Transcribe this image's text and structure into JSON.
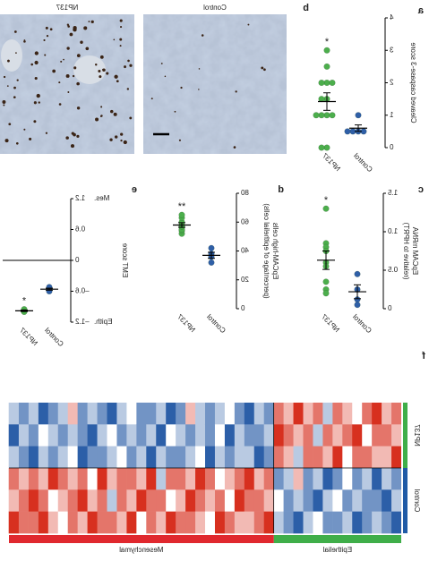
{
  "micrographs": {
    "letter": "b",
    "panels": [
      "Control",
      "NP137"
    ]
  },
  "chart_data": [
    {
      "type": "dot",
      "letter": "a",
      "ylabel": [
        "Cleaved caspase-3 score"
      ],
      "ylim": [
        0,
        4
      ],
      "yticks": [
        0,
        1,
        2,
        3,
        4
      ],
      "series": [
        {
          "name": "Control",
          "color": "#2f5fa7",
          "values": [
            0.5,
            0.5,
            0.5,
            0.5,
            1
          ],
          "mean": 0.6,
          "sem": 0.1
        },
        {
          "name": "NP137",
          "color": "#4cae4c",
          "values": [
            0,
            0,
            1,
            1,
            1,
            1,
            1.5,
            1.5,
            2,
            2,
            2,
            2.5,
            3
          ],
          "mean": 1.42,
          "sem": 0.27,
          "annotation": "*"
        }
      ]
    },
    {
      "type": "dot",
      "letter": "c",
      "ylabel": [
        "EpCAM mRNA",
        "(relative to HPRT)"
      ],
      "ylim": [
        0,
        1.5
      ],
      "yticks": [
        0,
        0.5,
        {
          "value": 1,
          "label": "1.0"
        },
        1.5
      ],
      "series": [
        {
          "name": "Control",
          "color": "#2f5fa7",
          "values": [
            0.45,
            0.25,
            0.12,
            0.05
          ],
          "mean": 0.22,
          "sem": 0.09
        },
        {
          "name": "NP137",
          "color": "#4cae4c",
          "values": [
            1.3,
            0.85,
            0.8,
            0.75,
            0.6,
            0.55,
            0.35,
            0.25,
            0.2
          ],
          "mean": 0.63,
          "sem": 0.12,
          "annotation": "*"
        }
      ]
    },
    {
      "type": "dot",
      "letter": "d",
      "ylabel": [
        "EpCAM-high cells",
        "(percentage of epithelial cells)"
      ],
      "ylim": [
        0,
        80
      ],
      "yticks": [
        0,
        20,
        40,
        60,
        80
      ],
      "series": [
        {
          "name": "Control",
          "color": "#2f5fa7",
          "values": [
            38,
            42,
            36,
            32
          ],
          "mean": 37,
          "sem": 2.1
        },
        {
          "name": "NP137",
          "color": "#4cae4c",
          "values": [
            52,
            54,
            55,
            57,
            58,
            60,
            63,
            65
          ],
          "mean": 58,
          "sem": 1.6,
          "annotation": "**"
        }
      ]
    },
    {
      "type": "dot",
      "letter": "e",
      "ylabel": [
        "EMT score"
      ],
      "end_labels": [
        "Epith.",
        "Mes."
      ],
      "zero_line": true,
      "ylim": [
        -1.2,
        1.2
      ],
      "yticks": [
        {
          "value": -1.2,
          "label": "–1.2"
        },
        {
          "value": -0.6,
          "label": "–0.6"
        },
        0,
        0.6,
        1.2
      ],
      "series": [
        {
          "name": "Control",
          "color": "#2f5fa7",
          "values": [
            -0.55,
            -0.52,
            -0.6
          ],
          "mean": -0.56,
          "sem": 0.02
        },
        {
          "name": "NP137",
          "color": "#4cae4c",
          "values": [
            -0.98,
            -0.95,
            -1.0
          ],
          "mean": -0.98,
          "sem": 0.015,
          "annotation": "*"
        }
      ]
    },
    {
      "type": "heatmap",
      "letter": "f",
      "zlim": [
        -3,
        3
      ],
      "colors": [
        "#2c5fa8",
        "#ffffff",
        "#d7301f"
      ],
      "row_groups": [
        {
          "name": "NP137",
          "color": "#3fae49",
          "size": 3
        },
        {
          "name": "Control",
          "color": "#1f5aa6",
          "size": 3
        }
      ],
      "col_groups": [
        {
          "name": "Epithelial",
          "color": "#3fae49",
          "size": 13
        },
        {
          "name": "Mesenchymal",
          "color": "#e0282e",
          "size": 27
        }
      ],
      "values": [
        [
          2,
          1,
          3,
          2,
          0,
          1,
          2,
          -1,
          2,
          1,
          3,
          1,
          2,
          -2,
          -1,
          -3,
          -2,
          0,
          -1,
          -2,
          -1,
          1,
          -2,
          -3,
          -1,
          -2,
          -2,
          0,
          -1,
          -3,
          -2,
          -1,
          -2,
          1,
          -1,
          -2,
          -3,
          -1,
          -2,
          -1
        ],
        [
          1,
          2,
          2,
          0,
          3,
          2,
          1,
          2,
          -1,
          2,
          1,
          2,
          3,
          -1,
          -2,
          -2,
          -1,
          -3,
          0,
          -2,
          -1,
          -2,
          -1,
          0,
          -3,
          -1,
          -2,
          -1,
          -2,
          0,
          -1,
          -3,
          -2,
          -1,
          -2,
          -1,
          0,
          -2,
          -1,
          -3
        ],
        [
          3,
          1,
          1,
          2,
          2,
          0,
          3,
          1,
          2,
          2,
          -1,
          1,
          2,
          -2,
          -3,
          -1,
          -1,
          -2,
          -1,
          -3,
          0,
          -1,
          -2,
          -2,
          -1,
          -3,
          -1,
          -2,
          0,
          -1,
          -2,
          -2,
          -3,
          0,
          -1,
          -2,
          -1,
          -3,
          -2,
          -1
        ],
        [
          -2,
          -1,
          -3,
          -1,
          -2,
          0,
          -2,
          -3,
          -1,
          -2,
          1,
          -1,
          -2,
          2,
          1,
          3,
          2,
          1,
          0,
          2,
          3,
          1,
          2,
          2,
          -1,
          3,
          1,
          2,
          2,
          1,
          3,
          0,
          2,
          1,
          2,
          3,
          1,
          2,
          1,
          2
        ],
        [
          -1,
          -3,
          -2,
          -2,
          -1,
          -2,
          0,
          -1,
          -3,
          -2,
          -1,
          -2,
          0,
          1,
          2,
          2,
          3,
          0,
          2,
          1,
          2,
          3,
          1,
          0,
          2,
          2,
          3,
          1,
          2,
          -1,
          2,
          1,
          3,
          2,
          1,
          0,
          2,
          3,
          2,
          1
        ],
        [
          -3,
          -2,
          -1,
          -2,
          -3,
          -1,
          -2,
          -2,
          0,
          -1,
          -3,
          -2,
          -1,
          3,
          2,
          1,
          1,
          2,
          3,
          0,
          1,
          2,
          2,
          3,
          1,
          2,
          0,
          3,
          1,
          2,
          2,
          3,
          1,
          2,
          0,
          1,
          3,
          2,
          2,
          3
        ]
      ]
    }
  ]
}
